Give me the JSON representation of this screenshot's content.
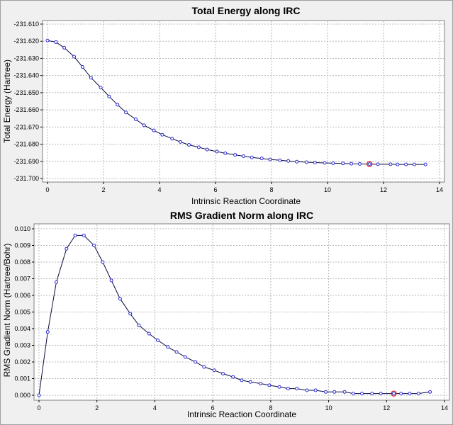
{
  "chart_data": [
    {
      "type": "line",
      "title": "Total Energy along IRC",
      "xlabel": "Intrinsic Reaction Coordinate",
      "ylabel": "Total Energy (Hartree)",
      "xlim": [
        0,
        14
      ],
      "ylim": [
        -231.7,
        -231.61
      ],
      "xticks": [
        0,
        2,
        4,
        6,
        8,
        10,
        12,
        14
      ],
      "xtick_labels": [
        "0",
        "2",
        "4",
        "6",
        "8",
        "10",
        "12",
        "14"
      ],
      "yticks": [
        -231.61,
        -231.62,
        -231.63,
        -231.64,
        -231.65,
        -231.66,
        -231.67,
        -231.68,
        -231.69,
        -231.7
      ],
      "ytick_labels": [
        "-231.610",
        "-231.620",
        "-231.630",
        "-231.640",
        "-231.650",
        "-231.660",
        "-231.670",
        "-231.680",
        "-231.690",
        "-231.700"
      ],
      "grid": true,
      "highlight_index": 36,
      "x": [
        0,
        0.3,
        0.6,
        0.95,
        1.25,
        1.55,
        1.9,
        2.2,
        2.5,
        2.8,
        3.15,
        3.45,
        3.8,
        4.1,
        4.45,
        4.75,
        5.05,
        5.4,
        5.7,
        6.05,
        6.35,
        6.7,
        7.0,
        7.3,
        7.65,
        7.95,
        8.3,
        8.6,
        8.9,
        9.25,
        9.55,
        9.9,
        10.2,
        10.55,
        10.85,
        11.15,
        11.5,
        11.8,
        12.25,
        12.5,
        12.8,
        13.1,
        13.5
      ],
      "y": [
        -231.6196,
        -231.6205,
        -231.6238,
        -231.629,
        -231.635,
        -231.6412,
        -231.647,
        -231.6522,
        -231.657,
        -231.6615,
        -231.6655,
        -231.669,
        -231.672,
        -231.6745,
        -231.6768,
        -231.6787,
        -231.6804,
        -231.6818,
        -231.6831,
        -231.6843,
        -231.6853,
        -231.6862,
        -231.687,
        -231.6877,
        -231.6883,
        -231.6889,
        -231.6894,
        -231.6898,
        -231.6902,
        -231.6905,
        -231.6907,
        -231.6909,
        -231.6911,
        -231.6912,
        -231.6914,
        -231.6915,
        -231.6916,
        -231.6917,
        -231.6917,
        -231.6918,
        -231.6918,
        -231.6918,
        -231.6918
      ]
    },
    {
      "type": "line",
      "title": "RMS Gradient Norm along IRC",
      "xlabel": "Intrinsic Reaction Coordinate",
      "ylabel": "RMS Gradient Norm (Hartree/Bohr)",
      "xlim": [
        0,
        14
      ],
      "ylim": [
        0.0,
        0.01
      ],
      "xticks": [
        0,
        2,
        4,
        6,
        8,
        10,
        12,
        14
      ],
      "xtick_labels": [
        "0",
        "2",
        "4",
        "6",
        "8",
        "10",
        "12",
        "14"
      ],
      "yticks": [
        0.0,
        0.001,
        0.002,
        0.003,
        0.004,
        0.005,
        0.006,
        0.007,
        0.008,
        0.009,
        0.01
      ],
      "ytick_labels": [
        "0.000",
        "0.001",
        "0.002",
        "0.003",
        "0.004",
        "0.005",
        "0.006",
        "0.007",
        "0.008",
        "0.009",
        "0.010"
      ],
      "grid": true,
      "highlight_index": 38,
      "x": [
        0,
        0.3,
        0.6,
        0.95,
        1.25,
        1.55,
        1.9,
        2.2,
        2.5,
        2.8,
        3.15,
        3.45,
        3.8,
        4.1,
        4.45,
        4.75,
        5.05,
        5.4,
        5.7,
        6.05,
        6.35,
        6.7,
        7.0,
        7.3,
        7.65,
        7.95,
        8.3,
        8.6,
        8.9,
        9.25,
        9.55,
        9.9,
        10.2,
        10.55,
        10.85,
        11.15,
        11.5,
        11.8,
        12.25,
        12.5,
        12.8,
        13.1,
        13.5
      ],
      "y": [
        0.0,
        0.0038,
        0.0068,
        0.0088,
        0.0096,
        0.0096,
        0.009,
        0.008,
        0.0069,
        0.0058,
        0.0049,
        0.0042,
        0.0037,
        0.0033,
        0.0029,
        0.0026,
        0.0023,
        0.002,
        0.0017,
        0.0015,
        0.0013,
        0.0011,
        0.0009,
        0.0008,
        0.0007,
        0.0006,
        0.0005,
        0.0004,
        0.0004,
        0.0003,
        0.0003,
        0.0002,
        0.0002,
        0.0002,
        0.0001,
        0.0001,
        0.0001,
        0.0001,
        0.0001,
        0.0001,
        0.0001,
        0.0001,
        0.0002
      ]
    }
  ]
}
